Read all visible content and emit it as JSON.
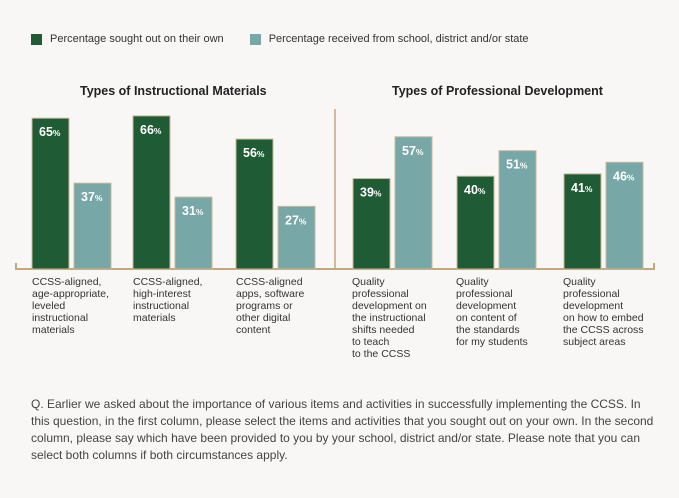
{
  "legend": {
    "series_own": "Percentage sought out on their own",
    "series_received": "Percentage received from school, district and/or state"
  },
  "colors": {
    "own": "#1f5c35",
    "received": "#77a7a7",
    "axis": "#c6a67c",
    "bar_border": "#c9b899"
  },
  "chart_data": [
    {
      "type": "bar",
      "title": "Types of Instructional Materials",
      "categories": [
        "CCSS-aligned,\nage-appropriate,\nleveled\ninstructional\nmaterials",
        "CCSS-aligned,\nhigh-interest\ninstructional\nmaterials",
        "CCSS-aligned\napps, software\nprograms or\nother digital\ncontent"
      ],
      "series": [
        {
          "name": "Percentage sought out on their own",
          "values": [
            65,
            66,
            56
          ]
        },
        {
          "name": "Percentage received from school, district and/or state",
          "values": [
            37,
            31,
            27
          ]
        }
      ],
      "ylim": [
        0,
        100
      ],
      "value_suffix": "%"
    },
    {
      "type": "bar",
      "title": "Types of Professional Development",
      "categories": [
        "Quality\nprofessional\ndevelopment on\nthe instructional\nshifts needed\nto teach\nto the CCSS",
        "Quality\nprofessional\ndevelopment\non content of\nthe standards\nfor my students",
        "Quality\nprofessional\ndevelopment\non how to embed\nthe CCSS across\nsubject areas"
      ],
      "series": [
        {
          "name": "Percentage sought out on their own",
          "values": [
            39,
            40,
            41
          ]
        },
        {
          "name": "Percentage received from school, district and/or state",
          "values": [
            57,
            51,
            46
          ]
        }
      ],
      "ylim": [
        0,
        100
      ],
      "value_suffix": "%"
    }
  ],
  "question": "Q. Earlier we asked about the importance of various items and activities in successfully implementing the CCSS. In this question, in the first column, please select the items and activities that you sought out on your own. In the second column, please say which have been provided to you by your school, district and/or state. Please note that you can select both columns if both circumstances apply."
}
